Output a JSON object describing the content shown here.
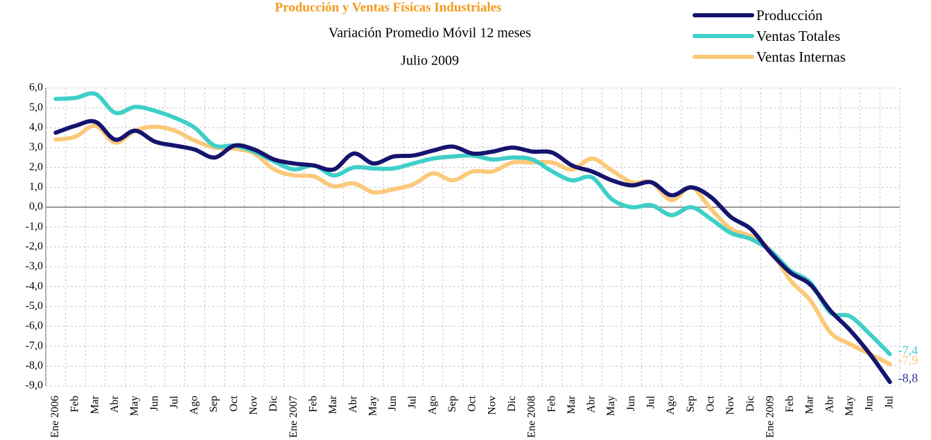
{
  "chart_data": {
    "type": "line",
    "title": "Producción y Ventas Físicas Industriales",
    "subtitle": "Variación Promedio Móvil 12 meses",
    "subtitle2": "Julio 2009",
    "categories": [
      "Ene 2006",
      "Feb",
      "Mar",
      "Abr",
      "May",
      "Jun",
      "Jul",
      "Ago",
      "Sep",
      "Oct",
      "Nov",
      "Dic",
      "Ene 2007",
      "Feb",
      "Mar",
      "Abr",
      "May",
      "Jun",
      "Jul",
      "Ago",
      "Sep",
      "Oct",
      "Nov",
      "Dic",
      "Ene 2008",
      "Feb",
      "Mar",
      "Abr",
      "May",
      "Jun",
      "Jul",
      "Ago",
      "Sep",
      "Oct",
      "Nov",
      "Dic",
      "Ene 2009",
      "Feb",
      "Mar",
      "Abr",
      "May",
      "Jun",
      "Jul"
    ],
    "series": [
      {
        "name": "Producción",
        "color": "#14146e",
        "values": [
          3.75,
          4.1,
          4.3,
          3.4,
          3.85,
          3.3,
          3.1,
          2.9,
          2.5,
          3.1,
          2.9,
          2.4,
          2.2,
          2.1,
          1.9,
          2.7,
          2.2,
          2.55,
          2.6,
          2.85,
          3.05,
          2.7,
          2.8,
          3.0,
          2.8,
          2.75,
          2.1,
          1.8,
          1.35,
          1.1,
          1.25,
          0.6,
          1.0,
          0.5,
          -0.5,
          -1.1,
          -2.3,
          -3.3,
          -3.9,
          -5.2,
          -6.2,
          -7.4,
          -8.8
        ],
        "value_labels": [
          null,
          null,
          null,
          null,
          null,
          null,
          null,
          null,
          null,
          null,
          null,
          null,
          null,
          null,
          null,
          null,
          null,
          null,
          null,
          null,
          null,
          null,
          null,
          null,
          null,
          null,
          null,
          null,
          null,
          null,
          null,
          null,
          null,
          null,
          null,
          null,
          null,
          null,
          null,
          null,
          null,
          null,
          "-8,8"
        ]
      },
      {
        "name": "Ventas Totales",
        "color": "#3ecfc8",
        "values": [
          5.45,
          5.5,
          5.7,
          4.75,
          5.05,
          4.85,
          4.5,
          4.0,
          3.1,
          3.1,
          2.8,
          2.3,
          1.9,
          2.1,
          1.6,
          2.0,
          1.95,
          1.95,
          2.2,
          2.45,
          2.55,
          2.6,
          2.4,
          2.5,
          2.4,
          1.8,
          1.35,
          1.5,
          0.4,
          0.0,
          0.1,
          -0.4,
          0.0,
          -0.6,
          -1.3,
          -1.6,
          -2.2,
          -3.2,
          -3.8,
          -5.3,
          -5.5,
          -6.4,
          -7.4
        ],
        "value_labels": [
          null,
          null,
          null,
          null,
          null,
          null,
          null,
          null,
          null,
          null,
          null,
          null,
          null,
          null,
          null,
          null,
          null,
          null,
          null,
          null,
          null,
          null,
          null,
          null,
          null,
          null,
          null,
          null,
          null,
          null,
          null,
          null,
          null,
          null,
          null,
          null,
          null,
          null,
          null,
          null,
          null,
          null,
          "-7,4"
        ]
      },
      {
        "name": "Ventas Internas",
        "color": "#fcc97a",
        "values": [
          3.4,
          3.55,
          4.1,
          3.25,
          3.85,
          4.05,
          3.85,
          3.35,
          3.0,
          2.95,
          2.7,
          1.9,
          1.6,
          1.55,
          1.05,
          1.2,
          0.75,
          0.9,
          1.15,
          1.7,
          1.35,
          1.8,
          1.8,
          2.25,
          2.25,
          2.25,
          1.9,
          2.45,
          1.85,
          1.25,
          1.25,
          0.35,
          1.0,
          -0.1,
          -1.1,
          -1.45,
          -2.2,
          -3.7,
          -4.7,
          -6.3,
          -6.9,
          -7.4,
          -7.9
        ],
        "value_labels": [
          null,
          null,
          null,
          null,
          null,
          null,
          null,
          null,
          null,
          null,
          null,
          null,
          null,
          null,
          null,
          null,
          null,
          null,
          null,
          null,
          null,
          null,
          null,
          null,
          null,
          null,
          null,
          null,
          null,
          null,
          null,
          null,
          null,
          null,
          null,
          null,
          null,
          null,
          null,
          null,
          null,
          null,
          "-7,9"
        ]
      }
    ],
    "ylim": [
      -9,
      6
    ],
    "yticks": [
      {
        "value": -9,
        "label": "-9,0"
      },
      {
        "value": -8,
        "label": "-8,0"
      },
      {
        "value": -7,
        "label": "-7,0"
      },
      {
        "value": -6,
        "label": "-6,0"
      },
      {
        "value": -5,
        "label": "-5,0"
      },
      {
        "value": -4,
        "label": "-4,0"
      },
      {
        "value": -3,
        "label": "-3,0"
      },
      {
        "value": -2,
        "label": "-2,0"
      },
      {
        "value": -1,
        "label": "-1,0"
      },
      {
        "value": 0,
        "label": "0,0"
      },
      {
        "value": 1,
        "label": "1,0"
      },
      {
        "value": 2,
        "label": "2,0"
      },
      {
        "value": 3,
        "label": "3,0"
      },
      {
        "value": 4,
        "label": "4,0"
      },
      {
        "value": 5,
        "label": "5,0"
      },
      {
        "value": 6,
        "label": "6,0"
      }
    ],
    "grid": true,
    "legend": "top-right"
  }
}
